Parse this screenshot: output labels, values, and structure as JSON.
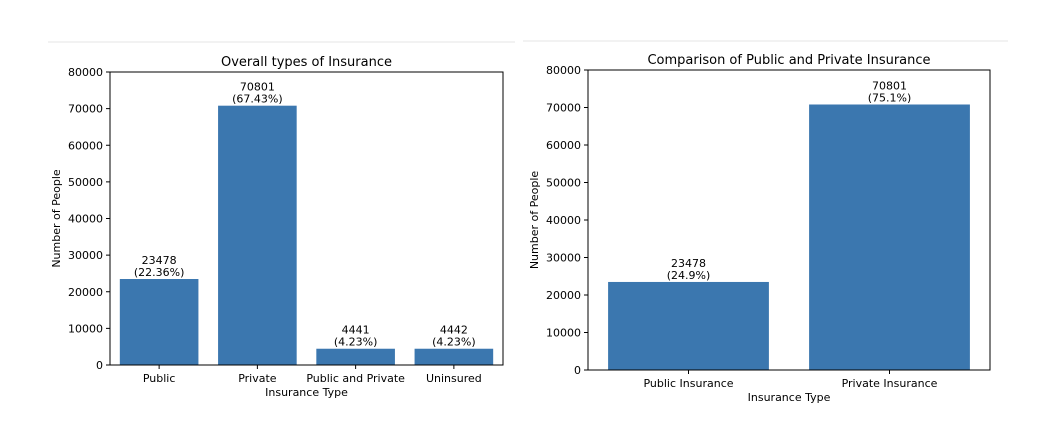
{
  "chart_data": [
    {
      "type": "bar",
      "title": "Overall types of Insurance",
      "xlabel": "Insurance Type",
      "ylabel": "Number of People",
      "categories": [
        "Public",
        "Private",
        "Public and Private",
        "Uninsured"
      ],
      "values": [
        23478,
        70801,
        4441,
        4442
      ],
      "data_labels": [
        "23478\n(22.36%)",
        "70801\n(67.43%)",
        "4441\n(4.23%)",
        "4442\n(4.23%)"
      ],
      "ylim": [
        0,
        80000
      ],
      "yticks": [
        0,
        10000,
        20000,
        30000,
        40000,
        50000,
        60000,
        70000,
        80000
      ],
      "color": "#3b77af",
      "grid": false
    },
    {
      "type": "bar",
      "title": "Comparison of Public and Private Insurance",
      "xlabel": "Insurance Type",
      "ylabel": "Number of People",
      "categories": [
        "Public Insurance",
        "Private Insurance"
      ],
      "values": [
        23478,
        70801
      ],
      "data_labels": [
        "23478\n(24.9%)",
        "70801\n(75.1%)"
      ],
      "ylim": [
        0,
        80000
      ],
      "yticks": [
        0,
        10000,
        20000,
        30000,
        40000,
        50000,
        60000,
        70000,
        80000
      ],
      "color": "#3b77af",
      "grid": false
    }
  ]
}
